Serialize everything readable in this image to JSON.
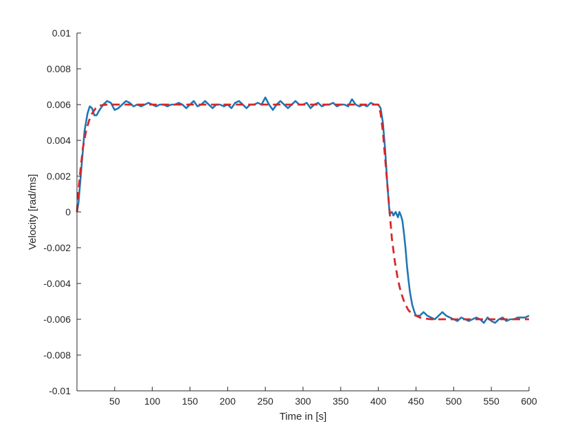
{
  "chart_data": {
    "type": "line",
    "title": "",
    "xlabel": "Time in [s]",
    "ylabel": "Velocity [rad/ms]",
    "xlim": [
      0,
      600
    ],
    "ylim": [
      -0.01,
      0.01
    ],
    "x_ticks": [
      50,
      100,
      150,
      200,
      250,
      300,
      350,
      400,
      450,
      500,
      550,
      600
    ],
    "y_ticks": [
      -0.01,
      -0.008,
      -0.006,
      -0.004,
      -0.002,
      0,
      0.002,
      0.004,
      0.006,
      0.008,
      0.01
    ],
    "x_tick_labels": [
      "50",
      "100",
      "150",
      "200",
      "250",
      "300",
      "350",
      "400",
      "450",
      "500",
      "550",
      "600"
    ],
    "y_tick_labels": [
      "-0.01",
      "-0.008",
      "-0.006",
      "-0.004",
      "-0.002",
      "0",
      "0.002",
      "0.004",
      "0.006",
      "0.008",
      "0.01"
    ],
    "grid": false,
    "legend": "none",
    "series": [
      {
        "role": "reference",
        "style": "dashed",
        "color": "#d62728",
        "x": [
          0,
          2,
          5,
          8,
          12,
          16,
          20,
          25,
          30,
          40,
          50,
          100,
          200,
          300,
          400,
          403,
          406,
          409,
          412,
          415,
          418,
          422,
          426,
          430,
          435,
          440,
          445,
          450,
          455,
          460,
          470,
          480,
          500,
          550,
          600
        ],
        "y": [
          0,
          0.0012,
          0.0025,
          0.0036,
          0.0045,
          0.0051,
          0.0055,
          0.0058,
          0.00595,
          0.006,
          0.006,
          0.006,
          0.006,
          0.006,
          0.006,
          0.0055,
          0.0045,
          0.003,
          0.0015,
          0.0,
          -0.0015,
          -0.0028,
          -0.0038,
          -0.0045,
          -0.0051,
          -0.0055,
          -0.0057,
          -0.0058,
          -0.0059,
          -0.00595,
          -0.006,
          -0.006,
          -0.006,
          -0.006,
          -0.006
        ]
      },
      {
        "role": "measured",
        "style": "solid",
        "color": "#1f77b4",
        "x": [
          0,
          2,
          4,
          6,
          8,
          10,
          12,
          14,
          17,
          20,
          23,
          26,
          30,
          35,
          40,
          45,
          50,
          55,
          60,
          65,
          70,
          75,
          80,
          85,
          90,
          95,
          100,
          105,
          110,
          115,
          120,
          125,
          130,
          135,
          140,
          145,
          150,
          155,
          160,
          165,
          170,
          175,
          180,
          185,
          190,
          195,
          200,
          205,
          210,
          215,
          220,
          225,
          230,
          235,
          240,
          245,
          250,
          255,
          260,
          265,
          270,
          275,
          280,
          285,
          290,
          295,
          300,
          305,
          310,
          315,
          320,
          325,
          330,
          335,
          340,
          345,
          350,
          355,
          360,
          365,
          370,
          375,
          380,
          385,
          390,
          395,
          400,
          403,
          406,
          409,
          412,
          415,
          418,
          420,
          423,
          426,
          428,
          430,
          432,
          434,
          436,
          438,
          440,
          442,
          445,
          448,
          450,
          455,
          460,
          465,
          470,
          475,
          480,
          485,
          490,
          495,
          500,
          505,
          510,
          515,
          520,
          525,
          530,
          535,
          540,
          545,
          550,
          555,
          560,
          565,
          570,
          575,
          580,
          585,
          590,
          595,
          600
        ],
        "y": [
          0,
          0.0005,
          0.0015,
          0.0025,
          0.0035,
          0.0045,
          0.005,
          0.0055,
          0.0059,
          0.0058,
          0.0054,
          0.0054,
          0.0057,
          0.006,
          0.0062,
          0.0061,
          0.0057,
          0.0058,
          0.006,
          0.0062,
          0.0061,
          0.0059,
          0.006,
          0.0059,
          0.006,
          0.0061,
          0.006,
          0.0059,
          0.006,
          0.006,
          0.0059,
          0.006,
          0.006,
          0.0061,
          0.006,
          0.0058,
          0.006,
          0.0062,
          0.0059,
          0.006,
          0.0062,
          0.006,
          0.0058,
          0.006,
          0.006,
          0.0059,
          0.006,
          0.0058,
          0.0061,
          0.0062,
          0.006,
          0.0058,
          0.006,
          0.006,
          0.0061,
          0.006,
          0.0064,
          0.006,
          0.0057,
          0.006,
          0.0062,
          0.006,
          0.0058,
          0.006,
          0.0062,
          0.006,
          0.006,
          0.0061,
          0.0058,
          0.006,
          0.0061,
          0.0059,
          0.006,
          0.006,
          0.0061,
          0.0059,
          0.006,
          0.006,
          0.0059,
          0.0063,
          0.006,
          0.0059,
          0.006,
          0.0059,
          0.0061,
          0.006,
          0.006,
          0.0058,
          0.005,
          0.0035,
          0.0015,
          -0.0001,
          0.0,
          -0.0002,
          0.0,
          -0.0003,
          0.0,
          -0.0002,
          -0.0005,
          -0.0012,
          -0.002,
          -0.003,
          -0.0038,
          -0.0045,
          -0.0052,
          -0.0056,
          -0.0058,
          -0.0058,
          -0.0056,
          -0.0058,
          -0.0059,
          -0.006,
          -0.0058,
          -0.0056,
          -0.0058,
          -0.0059,
          -0.006,
          -0.0061,
          -0.0059,
          -0.006,
          -0.0061,
          -0.006,
          -0.0059,
          -0.006,
          -0.0062,
          -0.0059,
          -0.0061,
          -0.0062,
          -0.006,
          -0.0059,
          -0.0061,
          -0.006,
          -0.006,
          -0.0059,
          -0.0059,
          -0.0059,
          -0.0058
        ]
      }
    ]
  }
}
